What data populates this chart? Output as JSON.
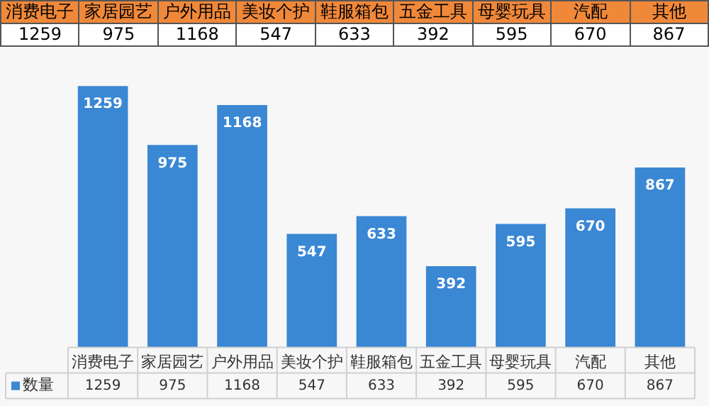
{
  "chart_data": [
    {
      "type": "other",
      "categories": [
        "消费电子",
        "家居园艺",
        "户外用品",
        "美妆个护",
        "鞋服箱包",
        "五金工具",
        "母婴玩具",
        "汽配",
        "其他"
      ],
      "annotations": [
        "1259",
        "975",
        "1168",
        "547",
        "633",
        "392",
        "595",
        "670",
        "867"
      ]
    },
    {
      "type": "bar",
      "categories": [
        "消费电子",
        "家居园艺",
        "户外用品",
        "美妆个护",
        "鞋服箱包",
        "五金工具",
        "母婴玩具",
        "汽配",
        "其他"
      ],
      "series": [
        {
          "name": "数量",
          "color": "#3a87d4",
          "values": [
            1259,
            975,
            1168,
            547,
            633,
            392,
            595,
            670,
            867
          ],
          "value_labels": [
            "1259",
            "975",
            "1168",
            "547",
            "633",
            "392",
            "595",
            "670",
            "867"
          ]
        }
      ],
      "annotations": [
        "1259",
        "975",
        "1168",
        "547",
        "633",
        "392",
        "595",
        "670",
        "867"
      ],
      "legend": "bottom",
      "grid": false
    }
  ]
}
